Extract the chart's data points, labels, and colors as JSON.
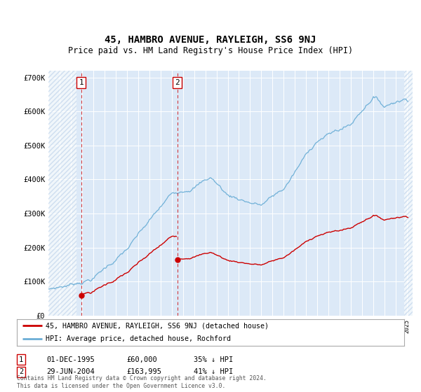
{
  "title": "45, HAMBRO AVENUE, RAYLEIGH, SS6 9NJ",
  "subtitle": "Price paid vs. HM Land Registry's House Price Index (HPI)",
  "ylim": [
    0,
    720000
  ],
  "yticks": [
    0,
    100000,
    200000,
    300000,
    400000,
    500000,
    600000,
    700000
  ],
  "ytick_labels": [
    "£0",
    "£100K",
    "£200K",
    "£300K",
    "£400K",
    "£500K",
    "£600K",
    "£700K"
  ],
  "title_fontsize": 10,
  "subtitle_fontsize": 8.5,
  "background_color": "#ffffff",
  "plot_bg_color": "#dce9f7",
  "hatch_color": "#b8cfe8",
  "grid_color": "#ffffff",
  "red_line_color": "#cc0000",
  "blue_line_color": "#6baed6",
  "sale1_price": 60000,
  "sale1_year": 1995.917,
  "sale2_price": 163995,
  "sale2_year": 2004.496,
  "legend_red": "45, HAMBRO AVENUE, RAYLEIGH, SS6 9NJ (detached house)",
  "legend_blue": "HPI: Average price, detached house, Rochford",
  "table_row1": [
    "1",
    "01-DEC-1995",
    "£60,000",
    "35% ↓ HPI"
  ],
  "table_row2": [
    "2",
    "29-JUN-2004",
    "£163,995",
    "41% ↓ HPI"
  ],
  "footer": "Contains HM Land Registry data © Crown copyright and database right 2024.\nThis data is licensed under the Open Government Licence v3.0.",
  "xmin": 1993,
  "xmax": 2025.5,
  "hatch_left_end": 1995.5,
  "hatch_right_start": 2024.75
}
